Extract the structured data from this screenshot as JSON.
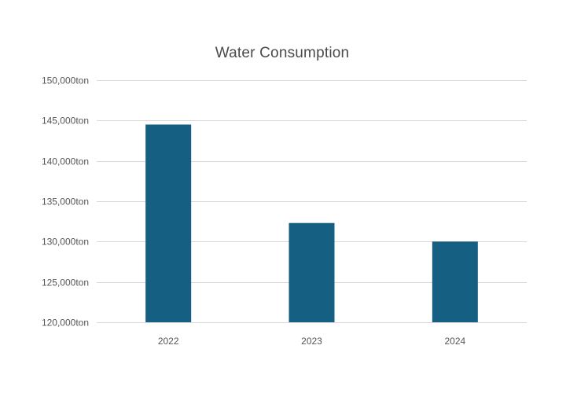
{
  "chart_data": {
    "type": "bar",
    "title": "Water Consumption",
    "xlabel": "",
    "ylabel": "",
    "categories": [
      "2022",
      "2023",
      "2024"
    ],
    "values": [
      144500,
      132300,
      130000
    ],
    "ylim": [
      120000,
      150000
    ],
    "yticks": [
      120000,
      125000,
      130000,
      135000,
      140000,
      145000,
      150000
    ],
    "ytick_labels": [
      "120,000ton",
      "125,000ton",
      "130,000ton",
      "135,000ton",
      "140,000ton",
      "145,000ton",
      "150,000ton"
    ],
    "unit": "ton",
    "grid": true,
    "legend": "none",
    "bar_color": "#156082",
    "grid_color": "#d9d9d9"
  }
}
